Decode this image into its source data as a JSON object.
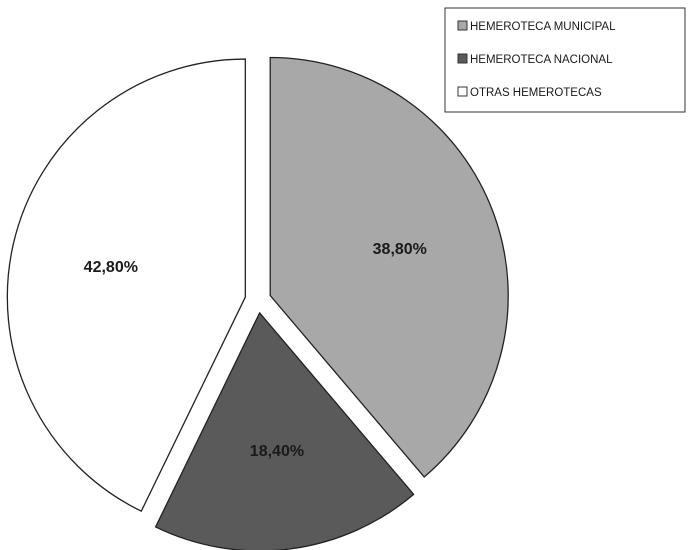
{
  "chart_data": {
    "type": "pie",
    "slices": [
      {
        "label": "HEMEROTECA MUNICIPAL",
        "value": 38.8,
        "value_label": "38,80%",
        "color": "#a8a8a8"
      },
      {
        "label": "HEMEROTECA NACIONAL",
        "value": 18.4,
        "value_label": "18,40%",
        "color": "#5a5a5a"
      },
      {
        "label": "OTRAS HEMEROTECAS",
        "value": 42.8,
        "value_label": "42,80%",
        "color": "#ffffff"
      }
    ],
    "legend_position": "top-right",
    "exploded": true
  }
}
